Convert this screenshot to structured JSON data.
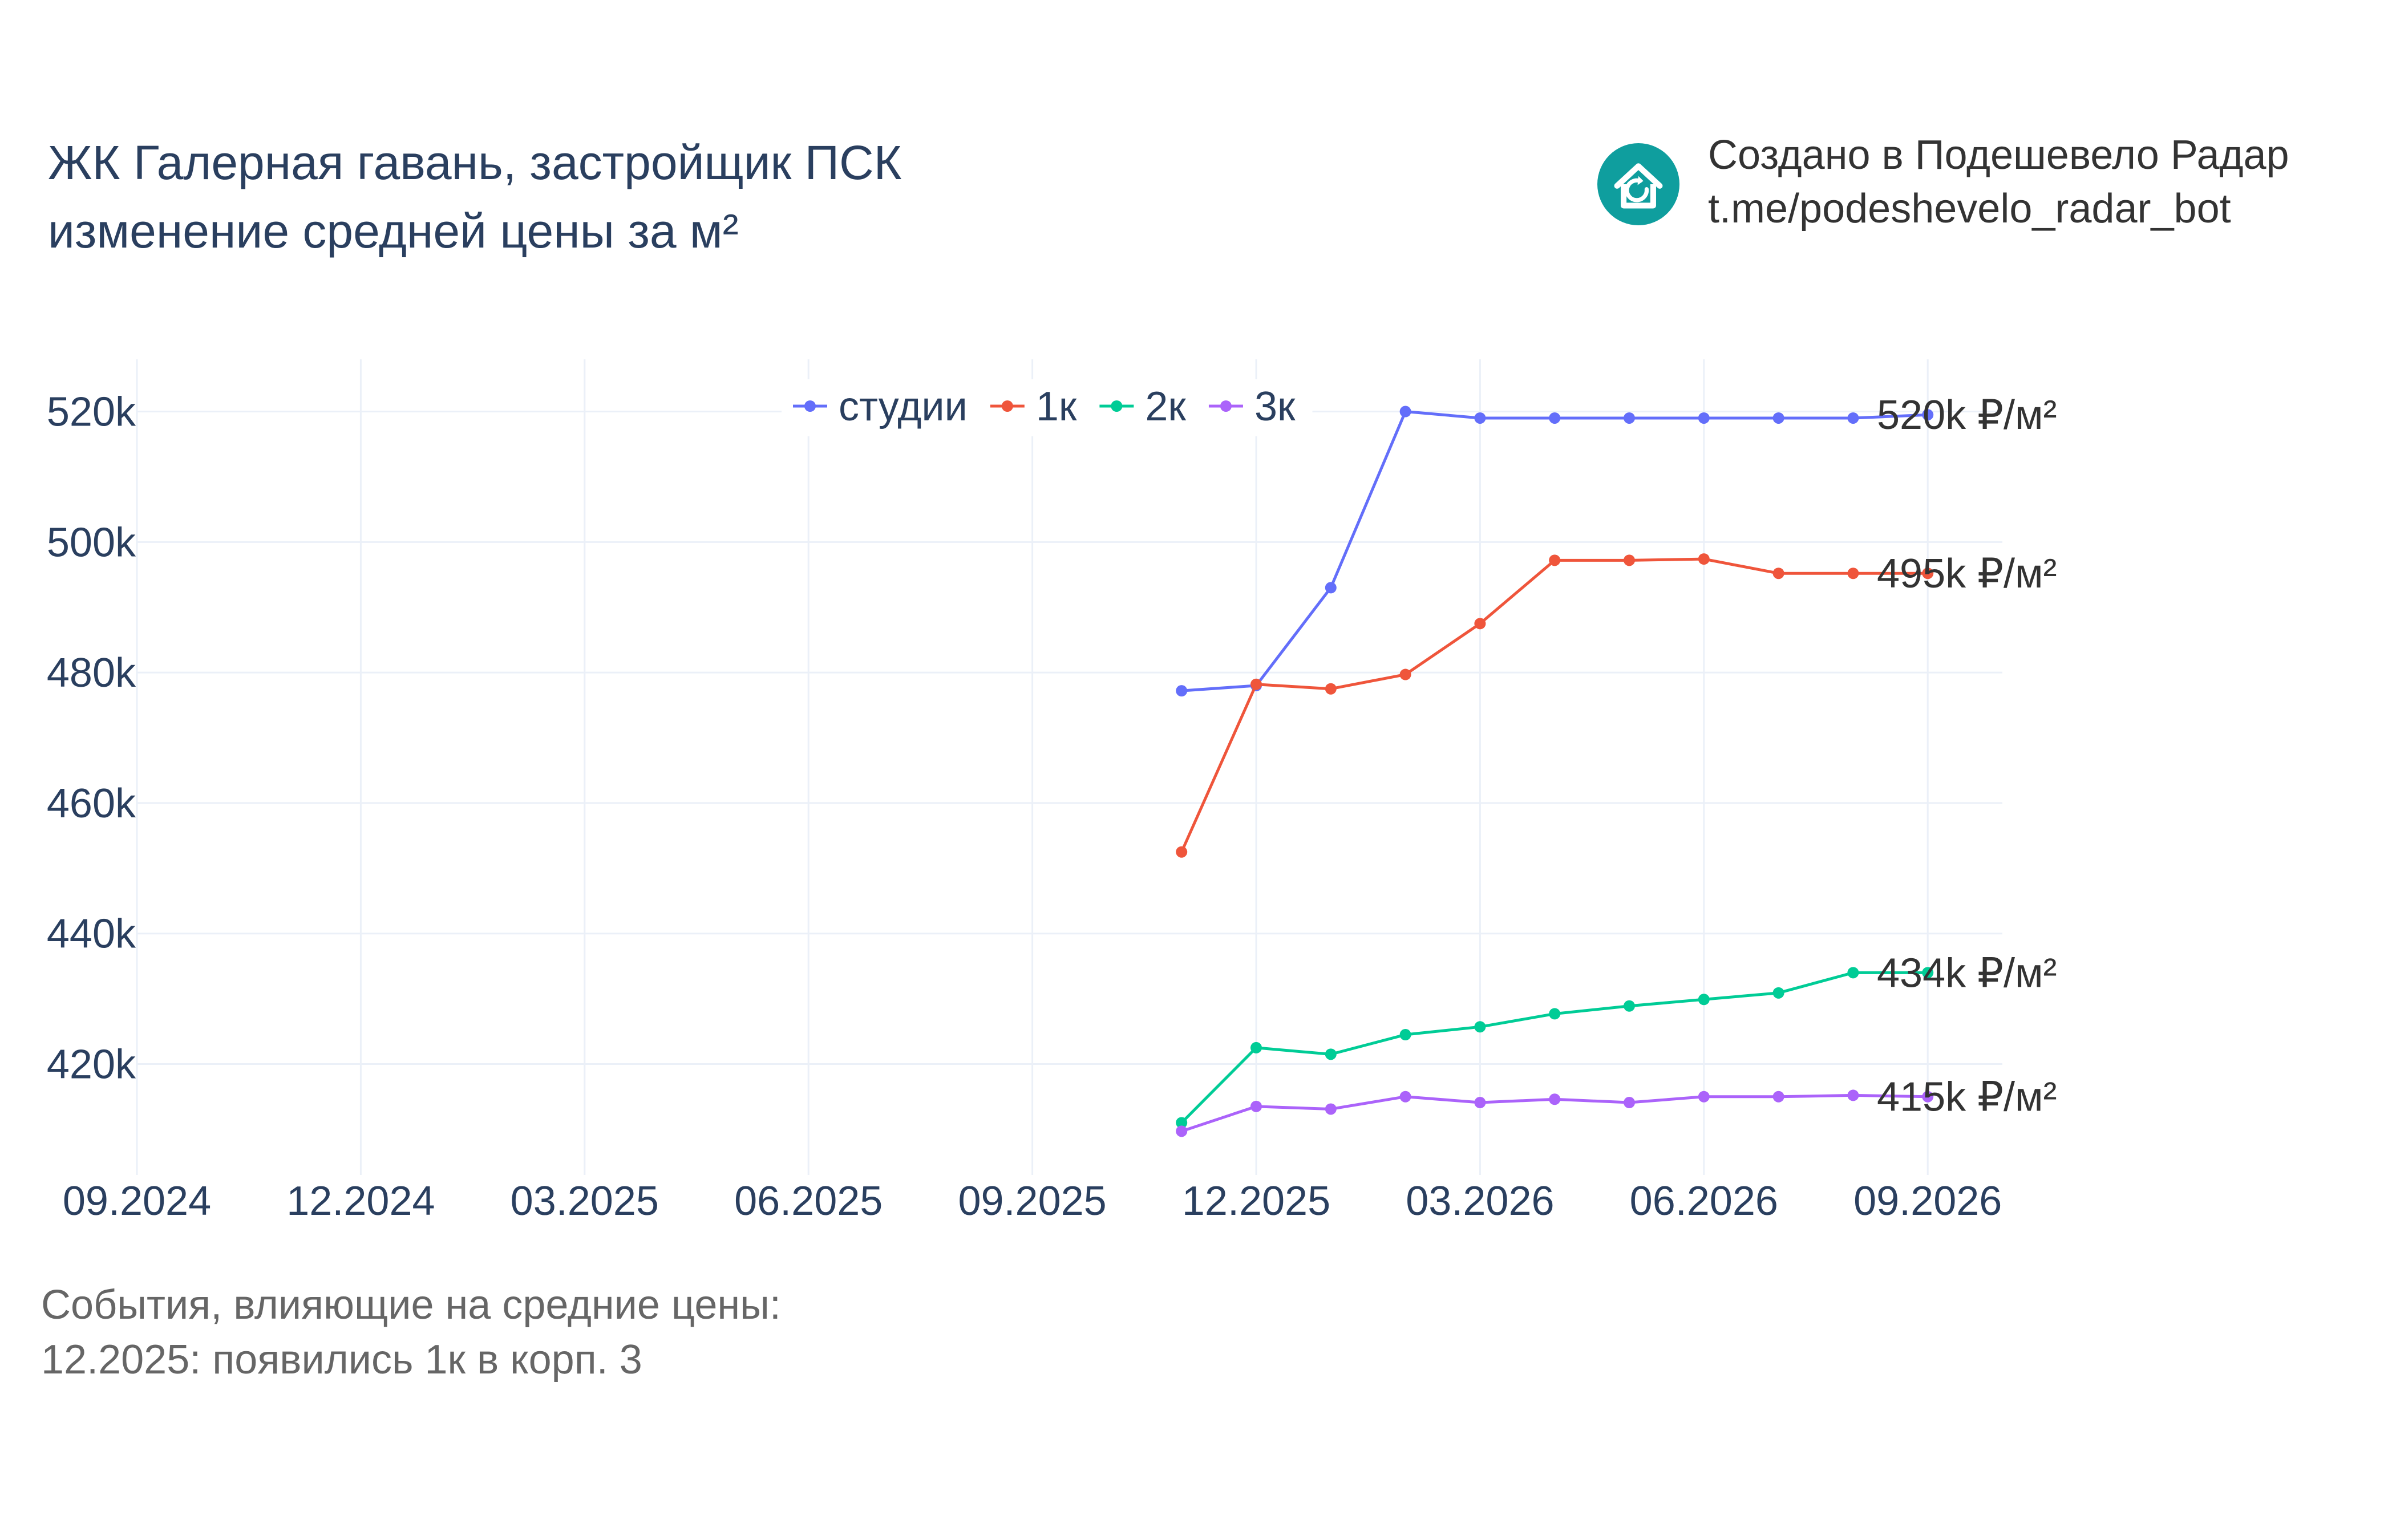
{
  "chart_data": {
    "type": "line",
    "title": [
      "ЖК Галерная гавань, застройщик ПСК",
      "изменение средней цены за м²"
    ],
    "x": [
      "11.2025",
      "12.2025",
      "01.2026",
      "02.2026",
      "03.2026",
      "04.2026",
      "05.2026",
      "06.2026",
      "07.2026",
      "08.2026",
      "09.2026"
    ],
    "x_ticks": [
      "09.2024",
      "12.2024",
      "03.2025",
      "06.2025",
      "09.2025",
      "12.2025",
      "03.2026",
      "06.2026",
      "09.2026"
    ],
    "x_range": [
      "09.2024",
      "10.2026"
    ],
    "y_ticks": [
      "420k",
      "440k",
      "460k",
      "480k",
      "500k",
      "520k"
    ],
    "y_tick_values": [
      420000,
      440000,
      460000,
      480000,
      500000,
      520000
    ],
    "ylim": [
      403000,
      528000
    ],
    "grid": true,
    "legend_position": "top",
    "series": [
      {
        "name": "студии",
        "color": "#636efa",
        "values": [
          477200,
          478000,
          493000,
          520000,
          519000,
          519000,
          519000,
          519000,
          519000,
          519000,
          519500
        ],
        "end_label": "520k ₽/м²"
      },
      {
        "name": "1к",
        "color": "#ef553b",
        "values": [
          452500,
          478200,
          477500,
          479700,
          487500,
          497200,
          497200,
          497400,
          495200,
          495200,
          495200
        ],
        "end_label": "495k ₽/м²"
      },
      {
        "name": "2к",
        "color": "#00cc96",
        "values": [
          411000,
          422500,
          421500,
          424500,
          425700,
          427700,
          428900,
          429900,
          430900,
          434000,
          434000
        ],
        "end_label": "434k ₽/м²"
      },
      {
        "name": "3к",
        "color": "#ab63fa",
        "values": [
          409700,
          413500,
          413100,
          415000,
          414100,
          414600,
          414100,
          415000,
          415000,
          415200,
          415000
        ],
        "end_label": "415k ₽/м²"
      }
    ]
  },
  "brand": {
    "line1": "Создано в Подешевело Радар",
    "line2": "t.me/podeshevelo_radar_bot",
    "logo_icon": "house-refresh-icon",
    "logo_color": "#0f9e9e"
  },
  "events": {
    "heading": "События, влияющие на средние цены:",
    "items": [
      "12.2025: появились 1к в корп. 3"
    ]
  }
}
